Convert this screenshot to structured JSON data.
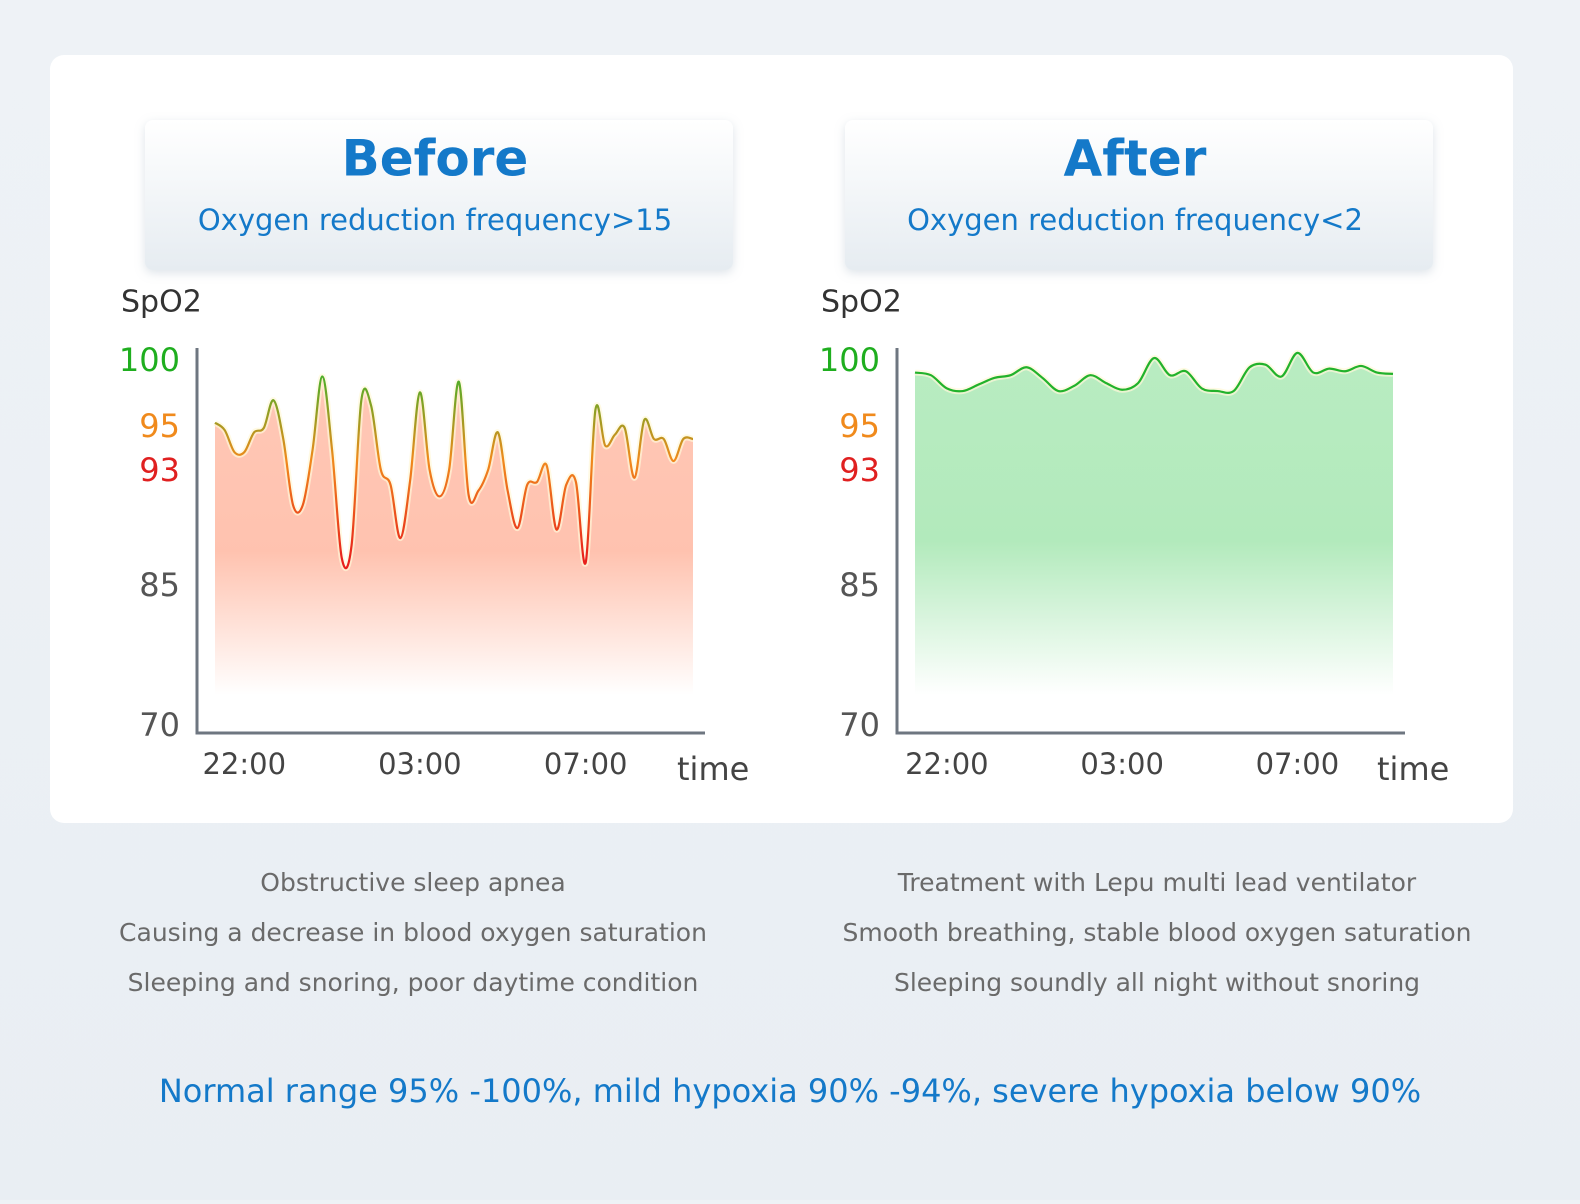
{
  "chart_data": [
    {
      "type": "line",
      "title": "Before",
      "subtitle": "Oxygen reduction frequency>15",
      "ylabel": "SpO2",
      "xlabel": "time",
      "values": [
        95.4,
        94.9,
        93.9,
        93.9,
        94.8,
        95.0,
        97.1,
        94.5,
        90.7,
        90.7,
        94.0,
        98.9,
        94.0,
        87.0,
        87.9,
        97.1,
        96.7,
        93.1,
        92.1,
        88.4,
        92.4,
        97.7,
        93.1,
        91.3,
        93.1,
        98.5,
        91.4,
        91.7,
        93.1,
        94.8,
        91.7,
        89.1,
        92.1,
        92.3,
        93.3,
        89.0,
        92.1,
        92.3,
        86.7,
        96.4,
        94.2,
        94.7,
        95.0,
        92.6,
        95.6,
        94.5,
        94.5,
        93.5,
        94.5,
        94.5
      ],
      "xlim": [
        0,
        49
      ],
      "xticks": [
        {
          "value": 3,
          "label": "22:00"
        },
        {
          "value": 21,
          "label": "03:00"
        },
        {
          "value": 38,
          "label": "07:00"
        }
      ],
      "ylim": [
        70,
        101
      ],
      "yticks": [
        70,
        85,
        93,
        95,
        100
      ],
      "ytick_colors": [
        "#555555",
        "#555555",
        "#e02020",
        "#f08a1c",
        "#1fae1f"
      ],
      "line_colors": [
        "#2bb52b",
        "#f08a1c",
        "#e8201c"
      ],
      "fill_color": "#ff9a7a"
    },
    {
      "type": "line",
      "title": "After",
      "subtitle": "Oxygen reduction frequency<2",
      "ylabel": "SpO2",
      "xlabel": "time",
      "values": [
        99.2,
        99.0,
        98.0,
        97.8,
        98.3,
        98.8,
        99.0,
        99.6,
        98.8,
        97.8,
        98.2,
        99.0,
        98.4,
        97.9,
        98.4,
        100.3,
        99.0,
        99.3,
        98.0,
        97.8,
        97.8,
        99.6,
        99.8,
        98.9,
        100.7,
        99.2,
        99.5,
        99.3,
        99.7,
        99.2,
        99.1
      ],
      "xlim": [
        0,
        30
      ],
      "xticks": [
        {
          "value": 2,
          "label": "22:00"
        },
        {
          "value": 13,
          "label": "03:00"
        },
        {
          "value": 24,
          "label": "07:00"
        }
      ],
      "ylim": [
        70,
        101
      ],
      "yticks": [
        70,
        85,
        93,
        95,
        100
      ],
      "ytick_colors": [
        "#555555",
        "#555555",
        "#e02020",
        "#f08a1c",
        "#1fae1f"
      ],
      "line_colors": [
        "#22b22b",
        "#22b22b",
        "#22b22b"
      ],
      "fill_color": "#7fdc8f"
    }
  ],
  "captions": [
    [
      "Obstructive sleep apnea",
      "Causing a decrease in blood oxygen saturation",
      "Sleeping and snoring, poor daytime condition"
    ],
    [
      "Treatment with Lepu multi lead ventilator",
      "Smooth breathing, stable blood oxygen saturation",
      "Sleeping soundly all night without snoring"
    ]
  ],
  "footer": "Normal range 95% -100%, mild hypoxia 90% -94%, severe hypoxia below 90%"
}
